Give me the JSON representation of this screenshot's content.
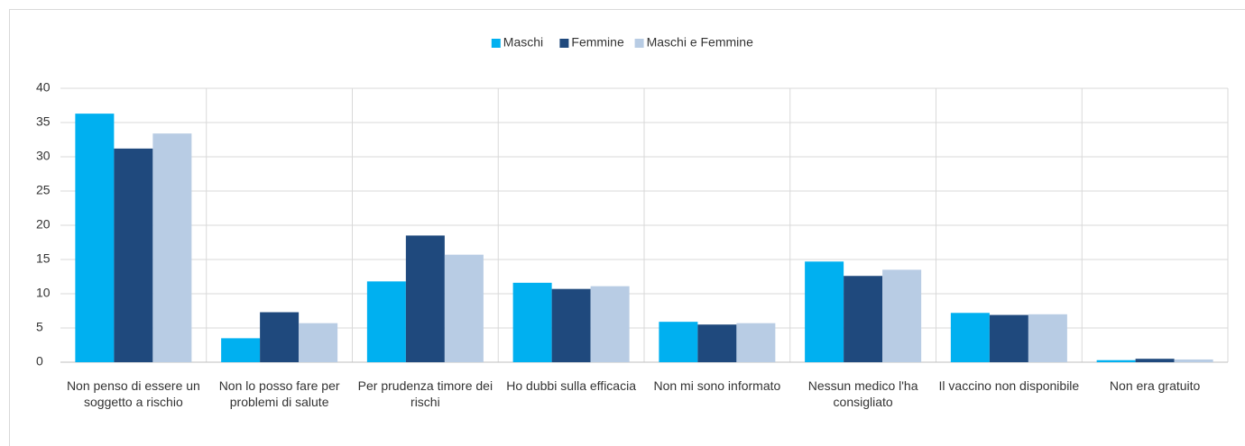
{
  "chart_data": {
    "type": "bar",
    "categories": [
      "Non penso di essere un soggetto a rischio",
      "Non lo posso fare per problemi di salute",
      "Per prudenza timore dei rischi",
      "Ho dubbi sulla efficacia",
      "Non mi sono informato",
      "Nessun medico l'ha consigliato",
      "Il vaccino non disponibile",
      "Non era gratuito"
    ],
    "series": [
      {
        "name": "Maschi",
        "color": "#00b0f0",
        "values": [
          36.3,
          3.5,
          11.8,
          11.6,
          5.9,
          14.7,
          7.2,
          0.3
        ]
      },
      {
        "name": "Femmine",
        "color": "#1f497d",
        "values": [
          31.2,
          7.3,
          18.5,
          10.7,
          5.5,
          12.6,
          6.9,
          0.5
        ]
      },
      {
        "name": "Maschi e Femmine",
        "color": "#b8cce4",
        "values": [
          33.4,
          5.7,
          15.7,
          11.1,
          5.7,
          13.5,
          7.0,
          0.4
        ]
      }
    ],
    "ylim": [
      0,
      40
    ],
    "yticks": [
      0,
      5,
      10,
      15,
      20,
      25,
      30,
      35,
      40
    ],
    "grid": true,
    "legend": "top"
  }
}
